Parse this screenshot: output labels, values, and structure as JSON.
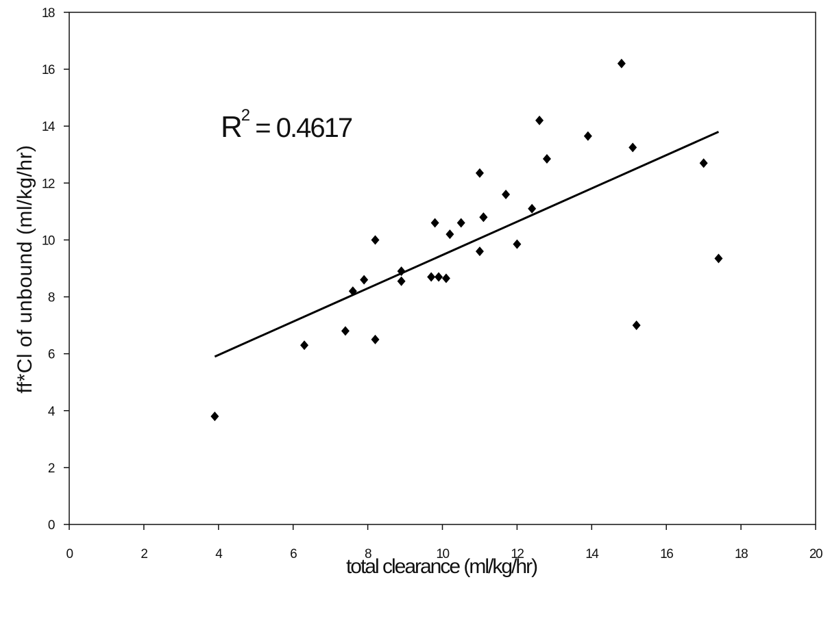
{
  "chart_data": {
    "type": "scatter",
    "title": "",
    "xlabel": "total clearance (ml/kg/hr)",
    "ylabel": "ff*Cl of unbound (ml/kg/hr)",
    "xlim": [
      0,
      20
    ],
    "ylim": [
      0,
      18
    ],
    "xticks": [
      0,
      2,
      4,
      6,
      8,
      10,
      12,
      14,
      16,
      18,
      20
    ],
    "yticks": [
      0,
      2,
      4,
      6,
      8,
      10,
      12,
      14,
      16,
      18
    ],
    "grid": false,
    "legend": "none",
    "annotation": {
      "r2_label": "R",
      "r2_sup": "2",
      "r2_value": " = 0.4617"
    },
    "trendline": {
      "x": [
        3.9,
        17.4
      ],
      "y": [
        5.9,
        13.8
      ]
    },
    "series": [
      {
        "marker": "diamond",
        "color": "#000000",
        "x": [
          3.9,
          6.3,
          7.4,
          7.6,
          7.9,
          8.2,
          8.2,
          8.9,
          8.9,
          9.7,
          9.8,
          9.9,
          10.1,
          10.2,
          10.5,
          11.0,
          11.0,
          11.1,
          11.1,
          11.7,
          12.0,
          12.4,
          12.6,
          12.8,
          13.9,
          14.8,
          15.1,
          15.2,
          17.0,
          17.4
        ],
        "y": [
          3.8,
          6.3,
          6.8,
          8.2,
          8.6,
          10.0,
          6.5,
          8.55,
          8.9,
          8.7,
          10.6,
          8.7,
          8.65,
          10.2,
          10.6,
          9.6,
          12.35,
          10.8,
          10.8,
          11.6,
          9.85,
          11.1,
          14.2,
          12.85,
          13.65,
          16.2,
          13.25,
          7.0,
          12.7,
          9.35
        ]
      }
    ]
  }
}
